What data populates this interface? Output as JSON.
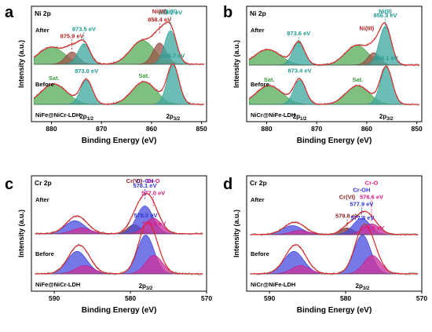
{
  "figure": {
    "x_axis_title": "Binding Energy (eV)",
    "y_axis_title": "Intensity (a.u.)"
  },
  "chart_data": [
    {
      "panel": "a",
      "element": "Ni 2p",
      "sample": "NiFe@NiCr-LDH",
      "type": "line",
      "xlim": [
        884,
        849
      ],
      "x_ticks": [
        880,
        870,
        860,
        850
      ],
      "xlabel": "Binding Energy (eV)",
      "ylabel": "Intensity (a.u.)",
      "after": {
        "label": "After",
        "background": 0.12,
        "peaks": [
          {
            "name": "Sat.",
            "center": 880.0,
            "height": 0.42,
            "width": 2.6,
            "color": "#3e9f3e"
          },
          {
            "name": "Ni(III)",
            "center": 875.9,
            "height": 0.3,
            "width": 1.3,
            "color": "#8b3a2f"
          },
          {
            "name": "Ni(II)",
            "center": 873.5,
            "height": 0.5,
            "width": 1.2,
            "color": "#1f9b91"
          },
          {
            "name": "Sat.",
            "center": 861.8,
            "height": 0.58,
            "width": 2.4,
            "color": "#3e9f3e"
          },
          {
            "name": "Ni(III)",
            "center": 858.4,
            "height": 0.52,
            "width": 1.3,
            "color": "#8b3a2f"
          },
          {
            "name": "Ni(II)",
            "center": 856.2,
            "height": 0.82,
            "width": 1.2,
            "color": "#1f9b91"
          }
        ],
        "annotations": [
          {
            "text": "875.9 eV",
            "x": 875.9,
            "color": "#b32020"
          },
          {
            "text": "873.5 eV",
            "x": 873.5,
            "color": "#1f9b91"
          },
          {
            "text": "858.4 eV",
            "x": 858.4,
            "color": "#b32020"
          },
          {
            "text": "856.2 eV",
            "x": 856.2,
            "color": "#1f9b91"
          },
          {
            "text": "Ni(III)",
            "x": 858.4,
            "color": "#b32020"
          },
          {
            "text": "Ni(II)",
            "x": 856.2,
            "color": "#1f9b91"
          }
        ]
      },
      "before": {
        "label": "Before",
        "background": 0.1,
        "peaks": [
          {
            "name": "Sat.",
            "center": 879.5,
            "height": 0.52,
            "width": 2.6,
            "color": "#3e9f3e"
          },
          {
            "name": "2p1/2",
            "center": 873.0,
            "height": 0.62,
            "width": 1.2,
            "color": "#1f9b91"
          },
          {
            "name": "Sat.",
            "center": 861.5,
            "height": 0.58,
            "width": 2.4,
            "color": "#3e9f3e"
          },
          {
            "name": "2p3/2",
            "center": 855.7,
            "height": 1.0,
            "width": 1.2,
            "color": "#1f9b91"
          }
        ],
        "annotations": [
          {
            "text": "873.0 eV",
            "x": 873.0,
            "color": "#1f9b91"
          },
          {
            "text": "855.7 eV",
            "x": 855.7,
            "color": "#1f9b91"
          },
          {
            "text": "Sat.",
            "x": 879.5,
            "color": "#3e9f3e"
          },
          {
            "text": "Sat.",
            "x": 861.5,
            "color": "#3e9f3e"
          }
        ]
      },
      "orbitals": [
        {
          "base": "2p",
          "sub": "1/2",
          "x": 873.0
        },
        {
          "base": "2p",
          "sub": "3/2",
          "x": 855.7
        }
      ]
    },
    {
      "panel": "b",
      "element": "Ni 2p",
      "sample": "NiCr@NiFe-LDH",
      "type": "line",
      "xlim": [
        884,
        849
      ],
      "x_ticks": [
        880,
        870,
        860,
        850
      ],
      "xlabel": "Binding Energy (eV)",
      "ylabel": "Intensity (a.u.)",
      "after": {
        "label": "After",
        "background": 0.1,
        "peaks": [
          {
            "name": "Sat.",
            "center": 879.8,
            "height": 0.38,
            "width": 2.6,
            "color": "#3e9f3e"
          },
          {
            "name": "Ni(II)",
            "center": 873.6,
            "height": 0.55,
            "width": 1.2,
            "color": "#1f9b91"
          },
          {
            "name": "Sat.",
            "center": 862.0,
            "height": 0.48,
            "width": 2.3,
            "color": "#3e9f3e"
          },
          {
            "name": "Ni(III)",
            "center": 858.6,
            "height": 0.3,
            "width": 1.2,
            "color": "#8b3a2f"
          },
          {
            "name": "Ni(II)",
            "center": 856.3,
            "height": 0.95,
            "width": 1.2,
            "color": "#1f9b91"
          }
        ],
        "annotations": [
          {
            "text": "873.6 eV",
            "x": 873.6,
            "color": "#1f9b91"
          },
          {
            "text": "856.3 eV",
            "x": 856.3,
            "color": "#1f9b91"
          },
          {
            "text": "Ni(II)",
            "x": 856.3,
            "color": "#1f9b91"
          },
          {
            "text": "Ni(III)",
            "x": 860.0,
            "color": "#b32020"
          }
        ]
      },
      "before": {
        "label": "Before",
        "background": 0.1,
        "peaks": [
          {
            "name": "Sat.",
            "center": 879.5,
            "height": 0.48,
            "width": 2.6,
            "color": "#3e9f3e"
          },
          {
            "name": "2p1/2",
            "center": 873.4,
            "height": 0.62,
            "width": 1.2,
            "color": "#1f9b91"
          },
          {
            "name": "Sat.",
            "center": 861.8,
            "height": 0.48,
            "width": 2.3,
            "color": "#3e9f3e"
          },
          {
            "name": "2p3/2",
            "center": 856.1,
            "height": 0.95,
            "width": 1.2,
            "color": "#1f9b91"
          }
        ],
        "annotations": [
          {
            "text": "873.4 eV",
            "x": 873.4,
            "color": "#1f9b91"
          },
          {
            "text": "856.1 eV",
            "x": 856.1,
            "color": "#1f9b91"
          },
          {
            "text": "Sat.",
            "x": 879.5,
            "color": "#3e9f3e"
          },
          {
            "text": "Sat.",
            "x": 861.8,
            "color": "#3e9f3e"
          }
        ]
      },
      "orbitals": [
        {
          "base": "2p",
          "sub": "1/2",
          "x": 873.4
        },
        {
          "base": "2p",
          "sub": "3/2",
          "x": 856.1
        }
      ]
    },
    {
      "panel": "c",
      "element": "Cr 2p",
      "sample": "NiFe@NiCr-LDH",
      "type": "line",
      "xlim": [
        593,
        570
      ],
      "x_ticks": [
        590,
        580,
        570
      ],
      "xlabel": "Binding Energy (eV)",
      "ylabel": "Intensity (a.u.)",
      "after": {
        "label": "After",
        "background": 0.12,
        "peaks": [
          {
            "name": "Cr-OH",
            "center": 587.3,
            "height": 0.32,
            "width": 1.3,
            "color": "#2f34d9"
          },
          {
            "name": "Cr-O",
            "center": 586.4,
            "height": 0.14,
            "width": 1.2,
            "color": "#c1118a"
          },
          {
            "name": "Cr(VI)",
            "center": 579.5,
            "height": 0.22,
            "width": 0.9,
            "color": "#6b1a1a"
          },
          {
            "name": "Cr-OH",
            "center": 578.1,
            "height": 0.68,
            "width": 1.1,
            "color": "#2f34d9"
          },
          {
            "name": "Cr-O",
            "center": 577.0,
            "height": 0.38,
            "width": 1.1,
            "color": "#c1118a"
          }
        ],
        "annotations": [
          {
            "text": "578.1 eV",
            "x": 578.1,
            "color": "#2f34d9"
          },
          {
            "text": "577.0 eV",
            "x": 577.0,
            "color": "#e01a80"
          },
          {
            "text": "Cr-OH",
            "x": 578.1,
            "color": "#2f34d9"
          },
          {
            "text": "Cr-O",
            "x": 577.0,
            "color": "#e01a80"
          },
          {
            "text": "Cr(VI)",
            "x": 579.5,
            "color": "#8b1f1f"
          }
        ]
      },
      "before": {
        "label": "Before",
        "background": 0.1,
        "peaks": [
          {
            "name": "Cr-OH",
            "center": 587.0,
            "height": 0.55,
            "width": 1.3,
            "color": "#2f34d9"
          },
          {
            "name": "Cr-O",
            "center": 586.0,
            "height": 0.2,
            "width": 1.2,
            "color": "#c1118a"
          },
          {
            "name": "Cr-OH",
            "center": 578.0,
            "height": 0.95,
            "width": 1.1,
            "color": "#2f34d9"
          },
          {
            "name": "Cr-O",
            "center": 576.9,
            "height": 0.45,
            "width": 1.1,
            "color": "#c1118a"
          }
        ],
        "annotations": [
          {
            "text": "578.0 eV",
            "x": 578.0,
            "color": "#2f34d9"
          },
          {
            "text": "576.9 eV",
            "x": 576.9,
            "color": "#e01a80"
          }
        ]
      },
      "orbitals": [
        {
          "base": "2p",
          "sub": "3/2",
          "x": 578.0
        }
      ]
    },
    {
      "panel": "d",
      "element": "Cr 2p",
      "sample": "NiCr@NiFe-LDH",
      "type": "line",
      "xlim": [
        593,
        570
      ],
      "x_ticks": [
        590,
        580,
        570
      ],
      "xlabel": "Binding Energy (eV)",
      "ylabel": "Intensity (a.u.)",
      "after": {
        "label": "After",
        "background": 0.1,
        "peaks": [
          {
            "name": "Cr-OH",
            "center": 587.0,
            "height": 0.22,
            "width": 1.3,
            "color": "#2f34d9"
          },
          {
            "name": "Cr-O",
            "center": 586.0,
            "height": 0.1,
            "width": 1.2,
            "color": "#c1118a"
          },
          {
            "name": "Cr(VI)",
            "center": 579.8,
            "height": 0.16,
            "width": 0.9,
            "color": "#6b1a1a"
          },
          {
            "name": "Cr-OH",
            "center": 577.9,
            "height": 0.4,
            "width": 1.1,
            "color": "#2f34d9"
          },
          {
            "name": "Cr-O",
            "center": 576.6,
            "height": 0.26,
            "width": 1.1,
            "color": "#c1118a"
          }
        ],
        "annotations": [
          {
            "text": "579.8 eV",
            "x": 579.8,
            "color": "#8b1f1f"
          },
          {
            "text": "577.9 eV",
            "x": 577.9,
            "color": "#2f34d9"
          },
          {
            "text": "576.6 eV",
            "x": 576.6,
            "color": "#e01a80"
          },
          {
            "text": "Cr(VI)",
            "x": 579.8,
            "color": "#8b1f1f"
          },
          {
            "text": "Cr-OH",
            "x": 577.9,
            "color": "#2f34d9"
          },
          {
            "text": "Cr-O",
            "x": 576.6,
            "color": "#e01a80"
          }
        ]
      },
      "before": {
        "label": "Before",
        "background": 0.1,
        "peaks": [
          {
            "name": "Cr-OH",
            "center": 586.8,
            "height": 0.55,
            "width": 1.3,
            "color": "#2f34d9"
          },
          {
            "name": "Cr-O",
            "center": 585.9,
            "height": 0.2,
            "width": 1.2,
            "color": "#c1118a"
          },
          {
            "name": "Cr-OH",
            "center": 577.8,
            "height": 0.95,
            "width": 1.1,
            "color": "#2f34d9"
          },
          {
            "name": "Cr-O",
            "center": 576.5,
            "height": 0.45,
            "width": 1.1,
            "color": "#c1118a"
          }
        ],
        "annotations": [
          {
            "text": "577.8 eV",
            "x": 577.8,
            "color": "#2f34d9"
          },
          {
            "text": "576.5 eV",
            "x": 576.5,
            "color": "#e01a80"
          }
        ]
      },
      "orbitals": [
        {
          "base": "2p",
          "sub": "3/2",
          "x": 577.8
        }
      ]
    }
  ]
}
